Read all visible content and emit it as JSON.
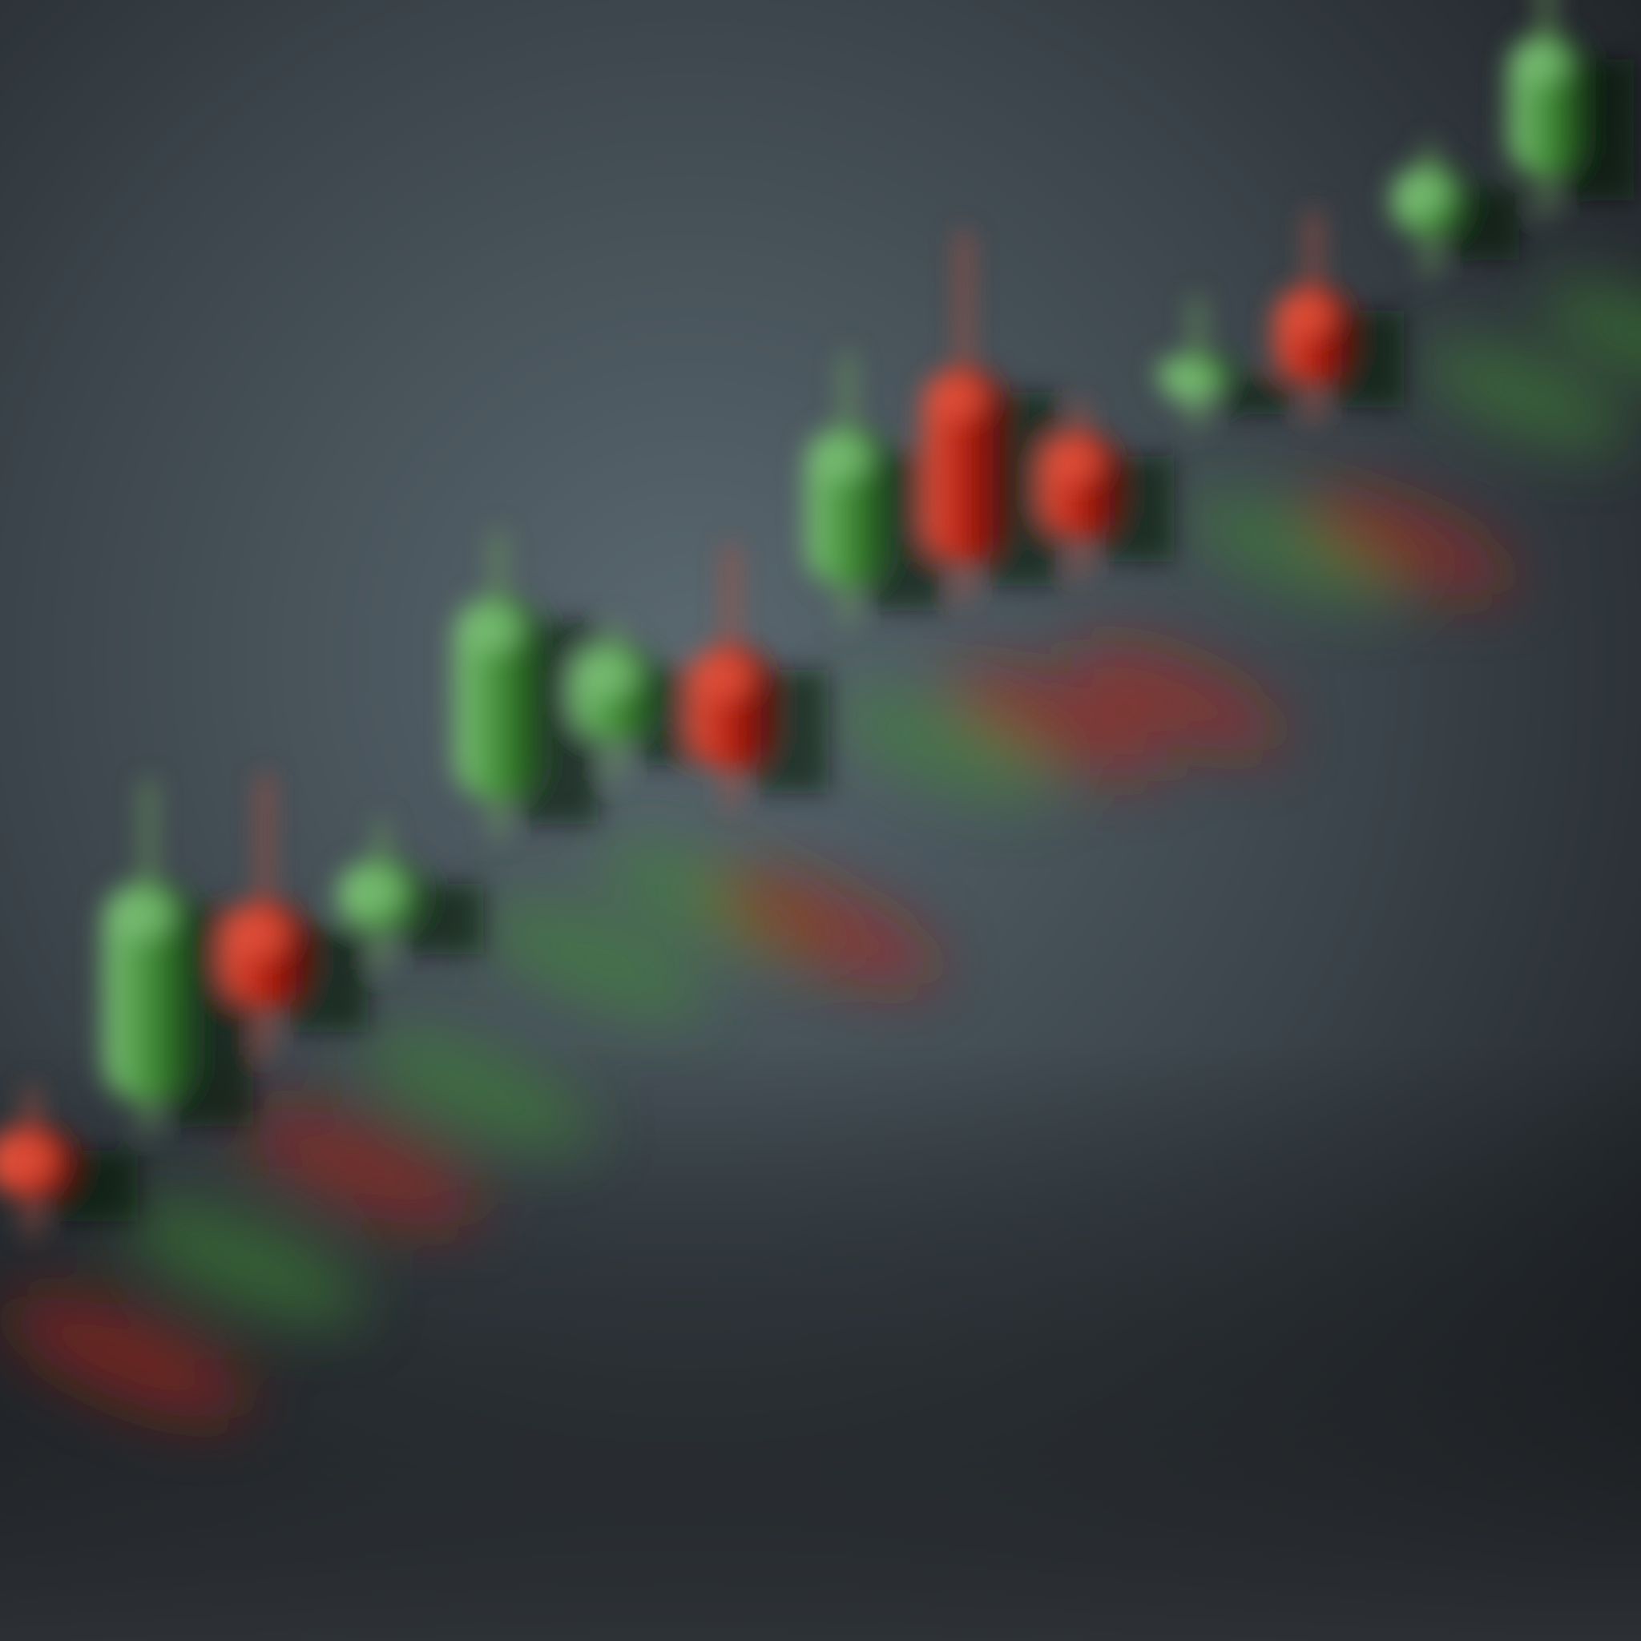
{
  "image": {
    "kind": "blurred 3D candlestick chart illustration",
    "printed_text": []
  },
  "colors": {
    "background_top": "#1b1e22",
    "background_mid": "#5a6870",
    "background_bottom": "#2e3236",
    "bull_light": "#7ec27a",
    "bull_mid": "#3f8a34",
    "bull_dark": "#123d12",
    "bear_light": "#e4553f",
    "bear_mid": "#b01d0e",
    "bear_dark": "#4a0a05",
    "wick_bull": "#6d9a5e",
    "wick_bear": "#b0503f",
    "ink_shadow": "#0a140a"
  },
  "candles": [
    {
      "direction": "down",
      "open": 34,
      "close": 26,
      "high": 38,
      "low": 22
    },
    {
      "direction": "up",
      "open": 32,
      "close": 57,
      "high": 68,
      "low": 29
    },
    {
      "direction": "down",
      "open": 50,
      "close": 38,
      "high": 64,
      "low": 33
    },
    {
      "direction": "up",
      "open": 42,
      "close": 50,
      "high": 54,
      "low": 38
    },
    {
      "direction": "up",
      "open": 52,
      "close": 75,
      "high": 82,
      "low": 48
    },
    {
      "direction": "up",
      "open": 54,
      "close": 65,
      "high": 67,
      "low": 50
    },
    {
      "direction": "down",
      "open": 60,
      "close": 46,
      "high": 71,
      "low": 42
    },
    {
      "direction": "up",
      "open": 62,
      "close": 80,
      "high": 88,
      "low": 58
    },
    {
      "direction": "down",
      "open": 82,
      "close": 60,
      "high": 97,
      "low": 56
    },
    {
      "direction": "down",
      "open": 70,
      "close": 58,
      "high": 73,
      "low": 54
    },
    {
      "direction": "up",
      "open": 70,
      "close": 74,
      "high": 80,
      "low": 66
    },
    {
      "direction": "down",
      "open": 77,
      "close": 66,
      "high": 85,
      "low": 62
    },
    {
      "direction": "up",
      "open": 78,
      "close": 86,
      "high": 88,
      "low": 74
    },
    {
      "direction": "up",
      "open": 80,
      "close": 96,
      "high": 104,
      "low": 76
    }
  ]
}
